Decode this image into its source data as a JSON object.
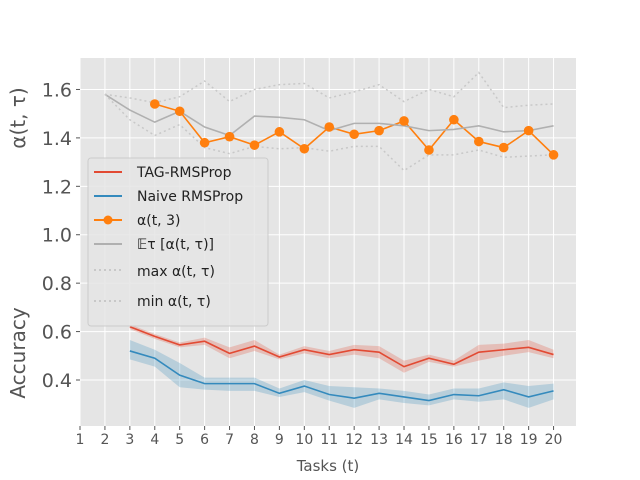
{
  "chart_data": {
    "type": "line",
    "xlabel": "Tasks (t)",
    "ylabel_top": "α(t, τ)",
    "ylabel_bottom": "Accuracy",
    "xlim": [
      1,
      20.9
    ],
    "ylim": [
      0.21,
      1.73
    ],
    "x_ticks": [
      1,
      2,
      3,
      4,
      5,
      6,
      7,
      8,
      9,
      10,
      11,
      12,
      13,
      14,
      15,
      16,
      17,
      18,
      19,
      20
    ],
    "y_ticks": [
      0.4,
      0.6,
      0.8,
      1.0,
      1.2,
      1.4,
      1.6
    ],
    "y_tick_labels": [
      "0.4",
      "0.6",
      "0.8",
      "1.0",
      "1.2",
      "1.4",
      "1.6"
    ],
    "colors": {
      "tag": "#e24a33",
      "naive": "#348abd",
      "alpha3": "#ff7f0e",
      "mean": "#b0b0b0",
      "maxmin": "#c8c8c8",
      "background": "#e5e5e5",
      "grid": "#ffffff"
    },
    "legend": {
      "position": "center-left",
      "entries": [
        {
          "key": "tag",
          "label": "TAG-RMSProp"
        },
        {
          "key": "naive",
          "label": "Naive RMSProp"
        },
        {
          "key": "alpha3",
          "label": "α(t, 3)"
        },
        {
          "key": "mean",
          "label": "𝔼τ  [α(t, τ)]"
        },
        {
          "key": "max",
          "label": "max α(t, τ)"
        },
        {
          "key": "min",
          "label": "min α(t, τ)"
        }
      ]
    },
    "series": [
      {
        "key": "tag",
        "name": "TAG-RMSProp",
        "x": [
          3,
          4,
          5,
          6,
          7,
          8,
          9,
          10,
          11,
          12,
          13,
          14,
          15,
          16,
          17,
          18,
          19,
          20
        ],
        "values": [
          0.62,
          0.58,
          0.545,
          0.56,
          0.51,
          0.54,
          0.495,
          0.525,
          0.505,
          0.525,
          0.515,
          0.455,
          0.49,
          0.465,
          0.515,
          0.525,
          0.535,
          0.505
        ],
        "band_low": [
          0.61,
          0.57,
          0.535,
          0.545,
          0.49,
          0.52,
          0.485,
          0.51,
          0.49,
          0.505,
          0.49,
          0.43,
          0.475,
          0.455,
          0.48,
          0.5,
          0.515,
          0.49
        ],
        "band_high": [
          0.63,
          0.59,
          0.555,
          0.575,
          0.535,
          0.565,
          0.505,
          0.54,
          0.52,
          0.545,
          0.54,
          0.48,
          0.505,
          0.48,
          0.545,
          0.55,
          0.565,
          0.525
        ]
      },
      {
        "key": "naive",
        "name": "Naive RMSProp",
        "x": [
          3,
          4,
          5,
          6,
          7,
          8,
          9,
          10,
          11,
          12,
          13,
          14,
          15,
          16,
          17,
          18,
          19,
          20
        ],
        "values": [
          0.52,
          0.49,
          0.42,
          0.385,
          0.385,
          0.385,
          0.345,
          0.375,
          0.34,
          0.325,
          0.345,
          0.33,
          0.315,
          0.34,
          0.335,
          0.36,
          0.33,
          0.355
        ],
        "band_low": [
          0.485,
          0.455,
          0.37,
          0.36,
          0.355,
          0.355,
          0.33,
          0.35,
          0.315,
          0.285,
          0.32,
          0.305,
          0.295,
          0.32,
          0.31,
          0.32,
          0.285,
          0.32
        ],
        "band_high": [
          0.565,
          0.525,
          0.47,
          0.41,
          0.41,
          0.41,
          0.365,
          0.4,
          0.375,
          0.37,
          0.365,
          0.355,
          0.34,
          0.365,
          0.365,
          0.39,
          0.375,
          0.385
        ]
      },
      {
        "key": "alpha3",
        "name": "α(t, 3)",
        "x": [
          4,
          5,
          6,
          7,
          8,
          9,
          10,
          11,
          12,
          13,
          14,
          15,
          16,
          17,
          18,
          19,
          20
        ],
        "values": [
          1.54,
          1.51,
          1.38,
          1.405,
          1.37,
          1.425,
          1.355,
          1.445,
          1.415,
          1.43,
          1.47,
          1.35,
          1.475,
          1.385,
          1.36,
          1.43,
          1.33
        ]
      },
      {
        "key": "mean",
        "name": "𝔼τ [α(t, τ)]",
        "x": [
          2,
          3,
          4,
          5,
          6,
          7,
          8,
          9,
          10,
          11,
          12,
          13,
          14,
          15,
          16,
          17,
          18,
          19,
          20
        ],
        "values": [
          1.58,
          1.515,
          1.465,
          1.51,
          1.445,
          1.41,
          1.49,
          1.485,
          1.475,
          1.43,
          1.46,
          1.46,
          1.45,
          1.43,
          1.435,
          1.45,
          1.425,
          1.43,
          1.45
        ]
      },
      {
        "key": "max",
        "name": "max α(t, τ)",
        "x": [
          2,
          3,
          4,
          5,
          6,
          7,
          8,
          9,
          10,
          11,
          12,
          13,
          14,
          15,
          16,
          17,
          18,
          19,
          20
        ],
        "values": [
          1.58,
          1.565,
          1.545,
          1.57,
          1.635,
          1.55,
          1.6,
          1.62,
          1.625,
          1.565,
          1.59,
          1.62,
          1.55,
          1.6,
          1.57,
          1.67,
          1.525,
          1.535,
          1.54
        ]
      },
      {
        "key": "min",
        "name": "min α(t, τ)",
        "x": [
          2,
          3,
          4,
          5,
          6,
          7,
          8,
          9,
          10,
          11,
          12,
          13,
          14,
          15,
          16,
          17,
          18,
          19,
          20
        ],
        "values": [
          1.58,
          1.475,
          1.41,
          1.455,
          1.36,
          1.335,
          1.365,
          1.355,
          1.36,
          1.345,
          1.365,
          1.365,
          1.265,
          1.33,
          1.33,
          1.35,
          1.32,
          1.325,
          1.33
        ]
      }
    ]
  }
}
